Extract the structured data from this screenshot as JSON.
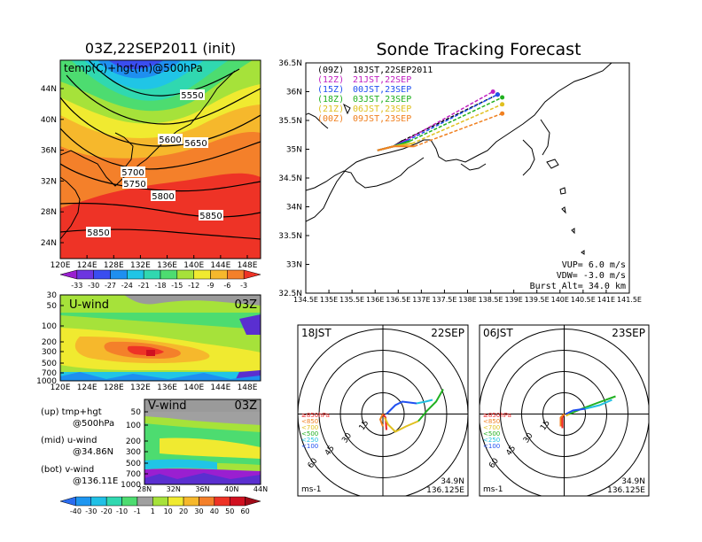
{
  "main_title": "Sonde Tracking Forecast",
  "map500": {
    "title": "03Z,22SEP2011 (init)",
    "label": "temp(C)+hgt(m)@500hPa",
    "lat_ticks": [
      "44N",
      "40N",
      "36N",
      "32N",
      "28N",
      "24N"
    ],
    "lon_ticks": [
      "120E",
      "124E",
      "128E",
      "132E",
      "136E",
      "140E",
      "144E",
      "148E"
    ],
    "contour_labels": [
      "5550",
      "5600",
      "5650",
      "5700",
      "5750",
      "5800",
      "5850",
      "5850"
    ],
    "colorbar_labels": [
      "-33",
      "-30",
      "-27",
      "-24",
      "-21",
      "-18",
      "-15",
      "-12",
      "-9",
      "-6",
      "-3"
    ],
    "colorbar_colors": [
      "#9a1fd0",
      "#6d35e0",
      "#3a4df0",
      "#1e8ff0",
      "#20c5e6",
      "#30d8b0",
      "#4ddc70",
      "#a6e23a",
      "#f0ea30",
      "#f6b82c",
      "#f4802a",
      "#ee3326"
    ]
  },
  "uwind": {
    "label": "U-wind",
    "time": "03Z",
    "y_ticks": [
      "30",
      "50",
      "100",
      "200",
      "300",
      "500",
      "700",
      "1000"
    ],
    "x_ticks": [
      "120E",
      "124E",
      "128E",
      "132E",
      "136E",
      "140E",
      "144E",
      "148E"
    ]
  },
  "vwind": {
    "label": "V-wind",
    "time": "03Z",
    "y_ticks": [
      "50",
      "100",
      "200",
      "300",
      "500",
      "700",
      "1000"
    ],
    "x_ticks": [
      "28N",
      "32N",
      "36N",
      "40N",
      "44N"
    ]
  },
  "notes": [
    "(up) tmp+hgt",
    "@500hPa",
    "(mid) u-wind",
    "@34.86N",
    "(bot) v-wind",
    "@136.11E"
  ],
  "wind_colorbar": {
    "labels": [
      "-40",
      "-30",
      "-20",
      "-10",
      "-1",
      "1",
      "10",
      "20",
      "30",
      "40",
      "50",
      "60"
    ],
    "colors": [
      "#2a6cf0",
      "#1e96f0",
      "#20c0e6",
      "#30d8b0",
      "#4ddc70",
      "#a0a0a0",
      "#a6e23a",
      "#f0ea30",
      "#f6b82c",
      "#f4802a",
      "#ee3326",
      "#d01020",
      "#a00a18"
    ]
  },
  "track": {
    "lat_ticks": [
      "36.5N",
      "36N",
      "35.5N",
      "35N",
      "34.5N",
      "34N",
      "33.5N",
      "33N",
      "32.5N"
    ],
    "lon_ticks": [
      "134.5E",
      "135E",
      "135.5E",
      "136E",
      "136.5E",
      "137E",
      "137.5E",
      "138E",
      "138.5E",
      "139E",
      "139.5E",
      "140E",
      "140.5E",
      "141E",
      "141.5E"
    ],
    "legend": [
      {
        "code": "(09Z)",
        "text": "18JST,22SEP2011",
        "color": "#000000"
      },
      {
        "code": "(12Z)",
        "text": "21JST,22SEP",
        "color": "#c020c0"
      },
      {
        "code": "(15Z)",
        "text": "00JST,23SEP",
        "color": "#2050f0"
      },
      {
        "code": "(18Z)",
        "text": "03JST,23SEP",
        "color": "#20b020"
      },
      {
        "code": "(21Z)",
        "text": "06JST,23SEP",
        "color": "#e0c020"
      },
      {
        "code": "(00Z)",
        "text": "09JST,23SEP",
        "color": "#f08020"
      }
    ],
    "params": [
      "VUP= 6.0 m/s",
      "VDW= -3.0 m/s",
      "Burst Alt= 34.0 km"
    ]
  },
  "hodo_left": {
    "time": "18JST",
    "date": "22SEP",
    "loc_lat": "34.9N",
    "loc_lon": "136.125E",
    "unit": "ms-1",
    "ring_labels": [
      "15",
      "30",
      "45",
      "60"
    ],
    "levels": [
      {
        "text": "≥850hPa",
        "color": "#ee2020"
      },
      {
        "text": "<850",
        "color": "#f08020"
      },
      {
        "text": "<700",
        "color": "#e0c020"
      },
      {
        "text": "<500",
        "color": "#20b020"
      },
      {
        "text": "<250",
        "color": "#20c0e0"
      },
      {
        "text": "<100",
        "color": "#2050f0"
      }
    ]
  },
  "hodo_right": {
    "time": "06JST",
    "date": "23SEP",
    "loc_lat": "34.9N",
    "loc_lon": "136.125E",
    "unit": "ms-1",
    "ring_labels": [
      "15",
      "30",
      "45",
      "60"
    ],
    "levels": [
      {
        "text": "≥850hPa",
        "color": "#ee2020"
      },
      {
        "text": "<850",
        "color": "#f08020"
      },
      {
        "text": "<700",
        "color": "#e0c020"
      },
      {
        "text": "<500",
        "color": "#20b020"
      },
      {
        "text": "<250",
        "color": "#20c0e0"
      },
      {
        "text": "<100",
        "color": "#2050f0"
      }
    ]
  }
}
